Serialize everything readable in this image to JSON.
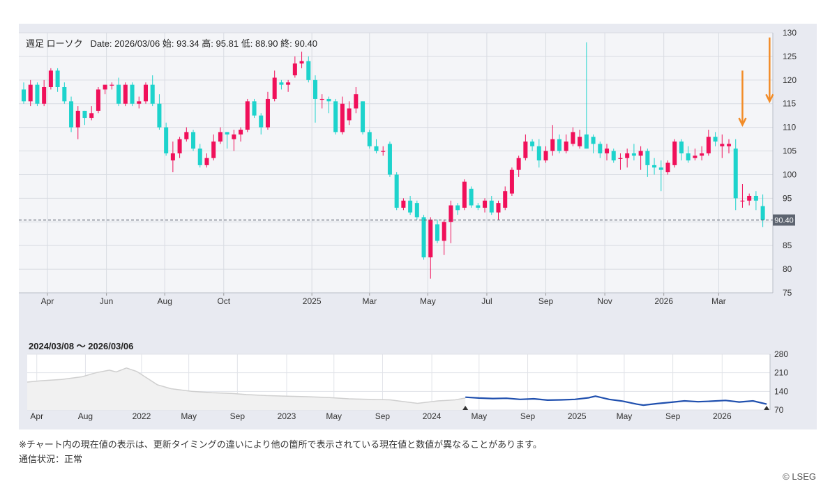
{
  "header": {
    "chart_kind": "週足 ローソク",
    "date_label": "Date:",
    "date": "2026/03/06",
    "open_label": "始:",
    "open": "93.34",
    "high_label": "高:",
    "high": "95.81",
    "low_label": "低:",
    "low": "88.90",
    "close_label": "終:",
    "close": "90.40"
  },
  "navigator": {
    "range_label": "2024/03/08 〜 2026/03/06"
  },
  "footnote": "※チャート内の現在値の表示は、更新タイミングの違いにより他の箇所で表示されている現在値と数値が異なることがあります。",
  "status": "通信状況：正常",
  "copyright": "© LSEG",
  "colors": {
    "up": "#f0105a",
    "down": "#1dd3cc",
    "panel": "#e8eaf1",
    "plot": "#f4f5f8",
    "grid": "#d8dbe2",
    "nav_line": "#1f4fae",
    "nav_history": "#cfcfcf",
    "annotation": "#f28c28",
    "price_tag": "#5d6470"
  },
  "chart_data": [
    {
      "type": "candlestick",
      "frequency": "weekly",
      "ylim": [
        75,
        130
      ],
      "yticks": [
        75,
        80,
        85,
        90,
        95,
        100,
        105,
        110,
        115,
        120,
        125,
        130
      ],
      "xticks": [
        {
          "label": "Apr",
          "index": 3.5
        },
        {
          "label": "Jun",
          "index": 12.2
        },
        {
          "label": "Aug",
          "index": 20.8
        },
        {
          "label": "Oct",
          "index": 29.5
        },
        {
          "label": "2025",
          "index": 42.5
        },
        {
          "label": "Mar",
          "index": 51.0
        },
        {
          "label": "May",
          "index": 59.6
        },
        {
          "label": "Jul",
          "index": 68.3
        },
        {
          "label": "Sep",
          "index": 77.0
        },
        {
          "label": "Nov",
          "index": 85.7
        },
        {
          "label": "2026",
          "index": 94.4
        },
        {
          "label": "Mar",
          "index": 102.5
        }
      ],
      "current_value": 90.4,
      "current_label": "90.40",
      "candles": [
        [
          118.0,
          115.5,
          119.5,
          115.0
        ],
        [
          115.5,
          119.0,
          120.0,
          114.5
        ],
        [
          119.0,
          115.0,
          119.5,
          114.5
        ],
        [
          115.0,
          118.5,
          120.0,
          114.5
        ],
        [
          118.5,
          122.0,
          122.5,
          118.0
        ],
        [
          122.0,
          118.5,
          122.5,
          117.5
        ],
        [
          118.5,
          115.5,
          119.5,
          115.0
        ],
        [
          115.5,
          110.0,
          116.5,
          109.0
        ],
        [
          110.0,
          113.5,
          114.5,
          107.5
        ],
        [
          113.5,
          112.0,
          113.5,
          110.5
        ],
        [
          112.0,
          113.0,
          114.5,
          111.5
        ],
        [
          113.5,
          118.0,
          118.5,
          113.0
        ],
        [
          118.0,
          119.0,
          119.0,
          117.0
        ],
        [
          119.0,
          119.0,
          119.5,
          118.0
        ],
        [
          119.0,
          115.0,
          120.5,
          114.5
        ],
        [
          115.0,
          119.0,
          119.5,
          114.5
        ],
        [
          119.0,
          115.0,
          119.5,
          114.5
        ],
        [
          115.0,
          115.5,
          116.5,
          114.0
        ],
        [
          115.5,
          119.0,
          119.5,
          115.0
        ],
        [
          119.0,
          115.0,
          121.0,
          114.5
        ],
        [
          115.0,
          110.0,
          117.0,
          109.5
        ],
        [
          110.0,
          104.5,
          111.0,
          104.0
        ],
        [
          103.0,
          104.5,
          107.0,
          100.5
        ],
        [
          104.5,
          107.5,
          108.0,
          103.5
        ],
        [
          107.5,
          109.0,
          110.0,
          107.0
        ],
        [
          109.0,
          105.5,
          109.5,
          105.0
        ],
        [
          105.5,
          102.0,
          106.5,
          101.5
        ],
        [
          102.0,
          103.5,
          104.5,
          101.5
        ],
        [
          103.5,
          107.0,
          108.5,
          103.0
        ],
        [
          107.0,
          109.0,
          110.0,
          106.5
        ],
        [
          109.0,
          108.5,
          109.0,
          105.5
        ],
        [
          107.5,
          108.5,
          109.5,
          105.0
        ],
        [
          108.5,
          109.5,
          110.0,
          107.0
        ],
        [
          109.5,
          115.5,
          116.0,
          109.0
        ],
        [
          115.5,
          112.5,
          116.0,
          112.0
        ],
        [
          112.5,
          110.0,
          113.0,
          108.5
        ],
        [
          110.0,
          116.0,
          117.5,
          109.5
        ],
        [
          116.0,
          120.5,
          122.0,
          115.5
        ],
        [
          119.5,
          119.0,
          120.0,
          118.0
        ],
        [
          119.0,
          119.5,
          120.0,
          117.5
        ],
        [
          121.0,
          123.5,
          125.0,
          120.5
        ],
        [
          123.5,
          124.0,
          126.0,
          122.5
        ],
        [
          124.0,
          120.0,
          125.0,
          119.5
        ],
        [
          120.0,
          116.0,
          121.0,
          111.0
        ],
        [
          116.0,
          116.0,
          117.0,
          114.0
        ],
        [
          116.0,
          115.5,
          116.5,
          113.0
        ],
        [
          115.5,
          109.0,
          116.0,
          108.5
        ],
        [
          109.0,
          115.0,
          116.5,
          108.5
        ],
        [
          111.5,
          114.0,
          115.5,
          110.5
        ],
        [
          114.0,
          117.0,
          118.5,
          113.0
        ],
        [
          115.5,
          109.0,
          115.5,
          108.5
        ],
        [
          109.0,
          106.0,
          109.5,
          105.5
        ],
        [
          106.0,
          105.0,
          107.5,
          104.5
        ],
        [
          105.0,
          105.0,
          106.0,
          104.0
        ],
        [
          106.5,
          100.0,
          107.0,
          99.5
        ],
        [
          100.0,
          93.0,
          100.5,
          92.5
        ],
        [
          93.0,
          94.5,
          95.0,
          92.5
        ],
        [
          94.5,
          92.0,
          95.5,
          91.5
        ],
        [
          94.0,
          91.0,
          94.5,
          90.5
        ],
        [
          91.0,
          82.5,
          91.5,
          82.0
        ],
        [
          82.5,
          90.5,
          91.0,
          78.0
        ],
        [
          89.5,
          86.0,
          90.5,
          85.5
        ],
        [
          86.0,
          90.0,
          90.5,
          83.0
        ],
        [
          90.0,
          93.5,
          94.5,
          85.5
        ],
        [
          93.5,
          92.5,
          94.0,
          91.5
        ],
        [
          93.0,
          98.5,
          99.0,
          92.5
        ],
        [
          97.0,
          93.5,
          97.5,
          93.0
        ],
        [
          93.5,
          93.0,
          94.0,
          92.5
        ],
        [
          93.0,
          94.5,
          95.0,
          92.0
        ],
        [
          94.5,
          92.0,
          95.5,
          91.5
        ],
        [
          92.0,
          94.0,
          94.5,
          90.5
        ],
        [
          93.0,
          96.5,
          97.5,
          92.5
        ],
        [
          96.0,
          101.0,
          101.5,
          95.5
        ],
        [
          101.0,
          103.5,
          104.0,
          99.5
        ],
        [
          103.5,
          107.0,
          108.5,
          103.0
        ],
        [
          107.0,
          106.0,
          107.5,
          105.0
        ],
        [
          106.0,
          103.0,
          107.5,
          101.5
        ],
        [
          103.0,
          105.0,
          106.0,
          102.5
        ],
        [
          105.0,
          107.5,
          110.5,
          104.0
        ],
        [
          107.5,
          105.0,
          108.5,
          104.5
        ],
        [
          105.0,
          107.0,
          108.5,
          104.5
        ],
        [
          106.5,
          109.0,
          110.0,
          106.0
        ],
        [
          106.0,
          108.0,
          109.5,
          105.5
        ],
        [
          108.5,
          105.5,
          128.0,
          105.5
        ],
        [
          108.0,
          106.5,
          108.5,
          104.5
        ],
        [
          106.5,
          104.5,
          107.0,
          103.5
        ],
        [
          104.5,
          105.5,
          106.5,
          103.0
        ],
        [
          105.0,
          103.0,
          105.5,
          102.5
        ],
        [
          103.5,
          103.5,
          104.5,
          101.0
        ],
        [
          103.5,
          104.5,
          105.5,
          101.5
        ],
        [
          104.5,
          104.0,
          106.5,
          103.0
        ],
        [
          104.0,
          105.0,
          106.0,
          101.0
        ],
        [
          105.0,
          102.0,
          105.5,
          99.5
        ],
        [
          102.0,
          101.5,
          103.5,
          100.0
        ],
        [
          101.5,
          101.0,
          103.0,
          96.5
        ],
        [
          100.5,
          102.5,
          103.0,
          100.0
        ],
        [
          102.0,
          107.0,
          107.5,
          101.5
        ],
        [
          107.0,
          104.5,
          107.5,
          103.0
        ],
        [
          104.5,
          103.0,
          106.0,
          102.5
        ],
        [
          103.5,
          104.0,
          105.5,
          103.0
        ],
        [
          104.0,
          104.5,
          106.0,
          103.0
        ],
        [
          104.5,
          108.0,
          109.5,
          104.0
        ],
        [
          108.0,
          107.0,
          109.0,
          106.0
        ],
        [
          106.0,
          106.5,
          108.5,
          103.5
        ],
        [
          106.0,
          106.5,
          107.5,
          104.5
        ],
        [
          105.5,
          95.0,
          107.5,
          92.5
        ],
        [
          94.5,
          94.5,
          98.0,
          93.0
        ],
        [
          94.5,
          95.5,
          96.0,
          93.5
        ],
        [
          95.5,
          94.5,
          96.5,
          92.5
        ],
        [
          93.34,
          90.4,
          95.81,
          88.9
        ]
      ],
      "annotations": [
        {
          "type": "arrow",
          "index": 106,
          "y_from": 122.0,
          "y_to": 110.5
        },
        {
          "type": "arrow",
          "index": 110,
          "y_from": 129.0,
          "y_to": 115.5
        }
      ]
    },
    {
      "type": "line",
      "role": "navigator",
      "ylim": [
        70,
        280
      ],
      "yticks": [
        70,
        140,
        210,
        280
      ],
      "xticks": [
        {
          "label": "Apr",
          "t": 0.014
        },
        {
          "label": "Aug",
          "t": 0.085
        },
        {
          "label": "2022",
          "t": 0.167
        },
        {
          "label": "May",
          "t": 0.236
        },
        {
          "label": "Sep",
          "t": 0.307
        },
        {
          "label": "2023",
          "t": 0.379
        },
        {
          "label": "May",
          "t": 0.448
        },
        {
          "label": "Sep",
          "t": 0.519
        },
        {
          "label": "2024",
          "t": 0.591
        },
        {
          "label": "May",
          "t": 0.66
        },
        {
          "label": "Sep",
          "t": 0.731
        },
        {
          "label": "2025",
          "t": 0.803
        },
        {
          "label": "May",
          "t": 0.872
        },
        {
          "label": "Sep",
          "t": 0.943
        },
        {
          "label": "2026",
          "t": 1.015
        }
      ],
      "history_series": [
        [
          0.0,
          175
        ],
        [
          0.02,
          180
        ],
        [
          0.05,
          185
        ],
        [
          0.08,
          195
        ],
        [
          0.1,
          210
        ],
        [
          0.12,
          220
        ],
        [
          0.13,
          213
        ],
        [
          0.145,
          228
        ],
        [
          0.16,
          215
        ],
        [
          0.175,
          190
        ],
        [
          0.19,
          165
        ],
        [
          0.21,
          150
        ],
        [
          0.24,
          140
        ],
        [
          0.27,
          135
        ],
        [
          0.3,
          132
        ],
        [
          0.32,
          128
        ],
        [
          0.35,
          124
        ],
        [
          0.38,
          122
        ],
        [
          0.41,
          120
        ],
        [
          0.44,
          117
        ],
        [
          0.47,
          112
        ],
        [
          0.5,
          110
        ],
        [
          0.53,
          108
        ],
        [
          0.555,
          100
        ],
        [
          0.57,
          95
        ],
        [
          0.6,
          104
        ],
        [
          0.625,
          108
        ],
        [
          0.64,
          115
        ]
      ],
      "selected_series": [
        [
          0.64,
          118
        ],
        [
          0.66,
          115
        ],
        [
          0.68,
          113
        ],
        [
          0.7,
          114
        ],
        [
          0.72,
          110
        ],
        [
          0.74,
          112
        ],
        [
          0.76,
          107
        ],
        [
          0.78,
          108
        ],
        [
          0.8,
          110
        ],
        [
          0.82,
          116
        ],
        [
          0.83,
          122
        ],
        [
          0.85,
          110
        ],
        [
          0.87,
          103
        ],
        [
          0.89,
          92
        ],
        [
          0.9,
          88
        ],
        [
          0.92,
          94
        ],
        [
          0.94,
          99
        ],
        [
          0.96,
          104
        ],
        [
          0.98,
          101
        ],
        [
          1.0,
          103
        ],
        [
          1.02,
          106
        ],
        [
          1.04,
          100
        ],
        [
          1.06,
          104
        ],
        [
          1.08,
          92
        ]
      ]
    }
  ]
}
